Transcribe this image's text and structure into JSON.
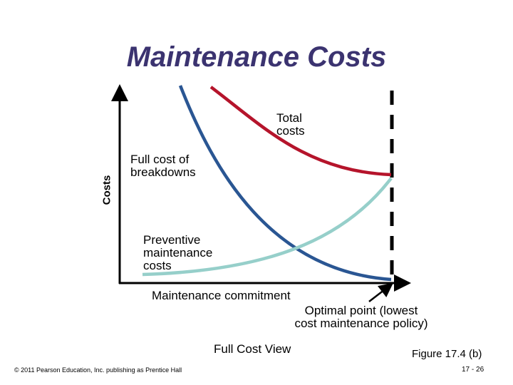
{
  "title": "Maintenance Costs",
  "axis": {
    "y_label": "Costs",
    "x_label": "Maintenance commitment"
  },
  "curves": {
    "total": {
      "label": [
        "Total",
        "costs"
      ],
      "color": "#b5142b"
    },
    "breakdowns": {
      "label": [
        "Full cost of",
        "breakdowns"
      ],
      "color": "#2a5693"
    },
    "preventive": {
      "label": [
        "Preventive",
        "maintenance",
        "costs"
      ],
      "color": "#96cfca"
    }
  },
  "optimal": {
    "label": [
      "Optimal point (lowest",
      "cost maintenance policy)"
    ]
  },
  "view_caption": "Full Cost View",
  "figure_caption": "Figure 17.4 (b)",
  "footer": {
    "copyright": "© 2011 Pearson Education, Inc. publishing as Prentice Hall",
    "page": "17 - 26"
  }
}
